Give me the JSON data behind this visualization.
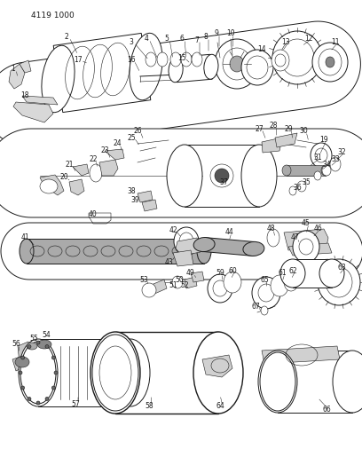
{
  "title_code": "4119 1000",
  "bg_color": "#ffffff",
  "line_color": "#1a1a1a",
  "fig_w": 4.08,
  "fig_h": 5.33,
  "dpi": 100
}
